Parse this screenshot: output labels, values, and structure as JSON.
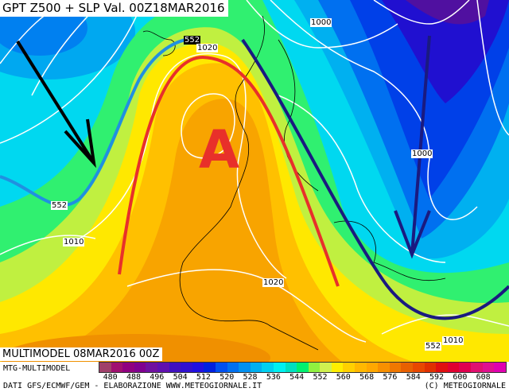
{
  "header": {
    "title": "GPT Z500 + SLP Val. 00Z18MAR2016"
  },
  "map": {
    "high_label": "A",
    "contour_labels": [
      {
        "text": "552",
        "kind": "z500"
      },
      {
        "text": "1020",
        "kind": "slp"
      },
      {
        "text": "1000",
        "kind": "slp"
      },
      {
        "text": "1000",
        "kind": "slp"
      },
      {
        "text": "552",
        "kind": "z500"
      },
      {
        "text": "1010",
        "kind": "slp"
      },
      {
        "text": "1020",
        "kind": "slp"
      },
      {
        "text": "552",
        "kind": "z500"
      },
      {
        "text": "1010",
        "kind": "slp"
      }
    ],
    "annotation_colors": {
      "ridge_axis": "#e8302a",
      "trough_axis": "#1a1a80",
      "z552_line": "#2090e0",
      "flow_arrow": "#000000"
    }
  },
  "footer": {
    "run_label": "MULTIMODEL 08MAR2016 00Z",
    "model_label": "MTG-MULTIMODEL",
    "source_label": "DATI GFS/ECMWF/GEM - ELABORAZIONE WWW.METEOGIORNALE.IT",
    "copyright": "(C) METEOGIORNALE",
    "scale_ticks": [
      "480",
      "488",
      "496",
      "504",
      "512",
      "520",
      "528",
      "536",
      "544",
      "552",
      "560",
      "568",
      "576",
      "584",
      "592",
      "600",
      "608"
    ],
    "scale_colors": [
      "#a0406a",
      "#a01070",
      "#900080",
      "#800090",
      "#7010a0",
      "#6010b0",
      "#4010c0",
      "#3010d0",
      "#2010e0",
      "#0020e0",
      "#0050f0",
      "#0070f0",
      "#0090f0",
      "#00b0f0",
      "#00d0f0",
      "#00f0f0",
      "#00e0c0",
      "#00f070",
      "#90f040",
      "#d0f050",
      "#ffee00",
      "#ffd000",
      "#ffb800",
      "#ffa800",
      "#f89000",
      "#f07800",
      "#e86000",
      "#e84800",
      "#e03000",
      "#e01010",
      "#e00030",
      "#e00050",
      "#e01070",
      "#e01090",
      "#e000b0"
    ]
  }
}
